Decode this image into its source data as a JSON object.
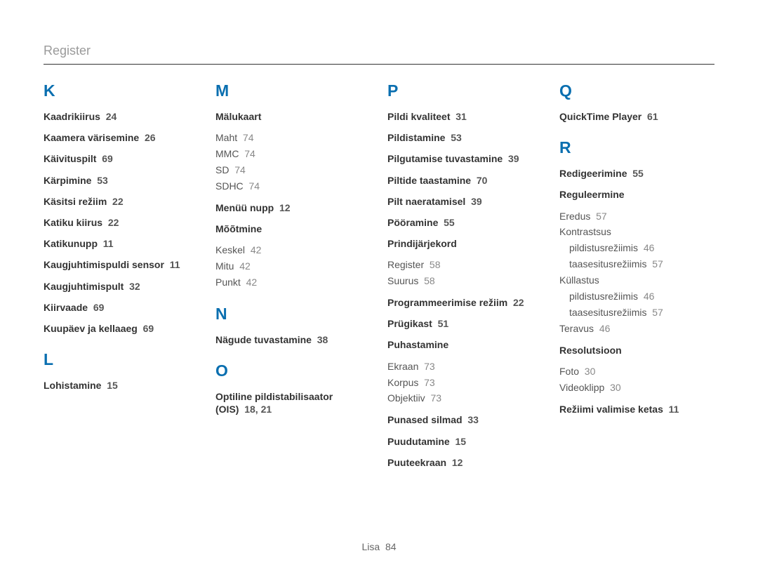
{
  "header": "Register",
  "footer_label": "Lisa",
  "footer_page": "84",
  "columns": [
    [
      {
        "letter": "K"
      },
      {
        "entry": "Kaadrikiirus",
        "pages": "24"
      },
      {
        "entry": "Kaamera värisemine",
        "pages": "26"
      },
      {
        "entry": "Käivituspilt",
        "pages": "69"
      },
      {
        "entry": "Kärpimine",
        "pages": "53"
      },
      {
        "entry": "Käsitsi režiim",
        "pages": "22"
      },
      {
        "entry": "Katiku kiirus",
        "pages": "22"
      },
      {
        "entry": "Katikunupp",
        "pages": "11"
      },
      {
        "entry": "Kaugjuhtimispuldi sensor",
        "pages": "11"
      },
      {
        "entry": "Kaugjuhtimispult",
        "pages": "32"
      },
      {
        "entry": "Kiirvaade",
        "pages": "69"
      },
      {
        "entry": "Kuupäev ja kellaaeg",
        "pages": "69"
      },
      {
        "letter": "L",
        "gap": true
      },
      {
        "entry": "Lohistamine",
        "pages": "15"
      }
    ],
    [
      {
        "letter": "M"
      },
      {
        "entry": "Mälukaart",
        "subs": [
          {
            "label": "Maht",
            "pages": "74"
          },
          {
            "label": "MMC",
            "pages": "74"
          },
          {
            "label": "SD",
            "pages": "74"
          },
          {
            "label": "SDHC",
            "pages": "74"
          }
        ]
      },
      {
        "entry": "Menüü nupp",
        "pages": "12"
      },
      {
        "entry": "Mõõtmine",
        "subs": [
          {
            "label": "Keskel",
            "pages": "42"
          },
          {
            "label": "Mitu",
            "pages": "42"
          },
          {
            "label": "Punkt",
            "pages": "42"
          }
        ]
      },
      {
        "letter": "N",
        "gap": true
      },
      {
        "entry": "Nägude tuvastamine",
        "pages": "38"
      },
      {
        "letter": "O",
        "gap": true
      },
      {
        "entry": "Optiline pildistabilisaator (OIS)",
        "pages": "18, 21"
      }
    ],
    [
      {
        "letter": "P"
      },
      {
        "entry": "Pildi kvaliteet",
        "pages": "31"
      },
      {
        "entry": "Pildistamine",
        "pages": "53"
      },
      {
        "entry": "Pilgutamise tuvastamine",
        "pages": "39"
      },
      {
        "entry": "Piltide taastamine",
        "pages": "70"
      },
      {
        "entry": "Pilt naeratamisel",
        "pages": "39"
      },
      {
        "entry": "Pööramine",
        "pages": "55"
      },
      {
        "entry": "Prindijärjekord",
        "subs": [
          {
            "label": "Register",
            "pages": "58"
          },
          {
            "label": "Suurus",
            "pages": "58"
          }
        ]
      },
      {
        "entry": "Programmeerimise režiim",
        "pages": "22"
      },
      {
        "entry": "Prügikast",
        "pages": "51"
      },
      {
        "entry": "Puhastamine",
        "subs": [
          {
            "label": "Ekraan",
            "pages": "73"
          },
          {
            "label": "Korpus",
            "pages": "73"
          },
          {
            "label": "Objektiiv",
            "pages": "73"
          }
        ]
      },
      {
        "entry": "Punased silmad",
        "pages": "33"
      },
      {
        "entry": "Puudutamine",
        "pages": "15"
      },
      {
        "entry": "Puuteekraan",
        "pages": "12"
      }
    ],
    [
      {
        "letter": "Q"
      },
      {
        "entry": "QuickTime Player",
        "pages": "61"
      },
      {
        "letter": "R",
        "gap": true
      },
      {
        "entry": "Redigeerimine",
        "pages": "55"
      },
      {
        "entry": "Reguleermine",
        "subs": [
          {
            "label": "Eredus",
            "pages": "57"
          },
          {
            "label": "Kontrastsus",
            "subsubs": [
              {
                "label": "pildistusrežiimis",
                "pages": "46"
              },
              {
                "label": "taasesitusrežiimis",
                "pages": "57"
              }
            ]
          },
          {
            "label": "Küllastus",
            "subsubs": [
              {
                "label": "pildistusrežiimis",
                "pages": "46"
              },
              {
                "label": "taasesitusrežiimis",
                "pages": "57"
              }
            ]
          },
          {
            "label": "Teravus",
            "pages": "46"
          }
        ]
      },
      {
        "entry": "Resolutsioon",
        "subs": [
          {
            "label": "Foto",
            "pages": "30"
          },
          {
            "label": "Videoklipp",
            "pages": "30"
          }
        ]
      },
      {
        "entry": "Režiimi valimise ketas",
        "pages": "11"
      }
    ]
  ]
}
